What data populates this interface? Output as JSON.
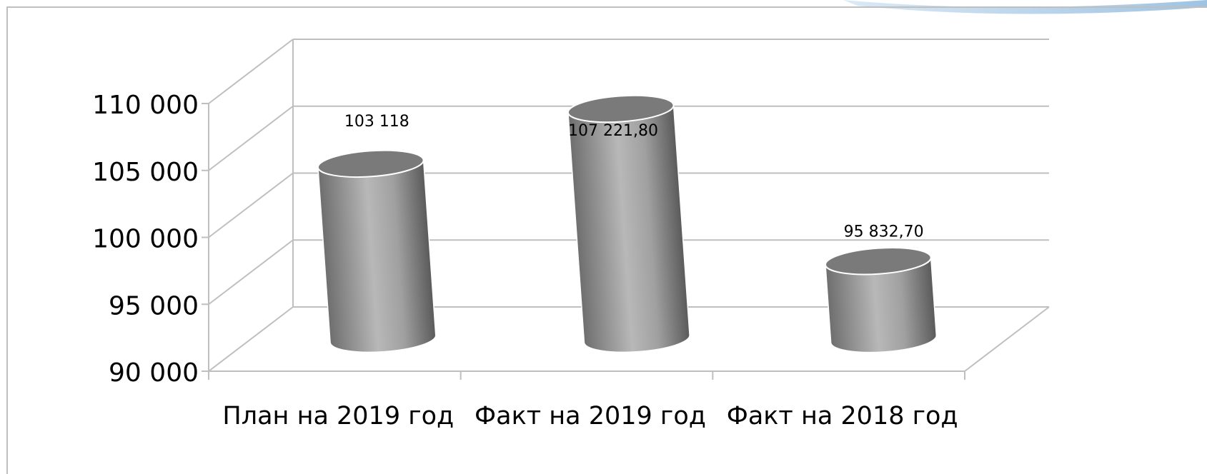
{
  "chart_data": {
    "type": "cylinder",
    "categories": [
      "План на 2019 год",
      "Факт на 2019 год",
      "Факт на 2018 год"
    ],
    "values": [
      103118,
      107221.8,
      95832.7
    ],
    "value_labels": [
      "103 118",
      "107 221,80",
      "95 832,70"
    ],
    "color": "#a6a6a6",
    "ylim": [
      90000,
      110000
    ],
    "yticks": [
      {
        "value": 90000,
        "label": "90 000"
      },
      {
        "value": 95000,
        "label": "95 000"
      },
      {
        "value": 100000,
        "label": "100 000"
      },
      {
        "value": 105000,
        "label": "105 000"
      },
      {
        "value": 110000,
        "label": "110 000"
      }
    ],
    "grid": true
  }
}
